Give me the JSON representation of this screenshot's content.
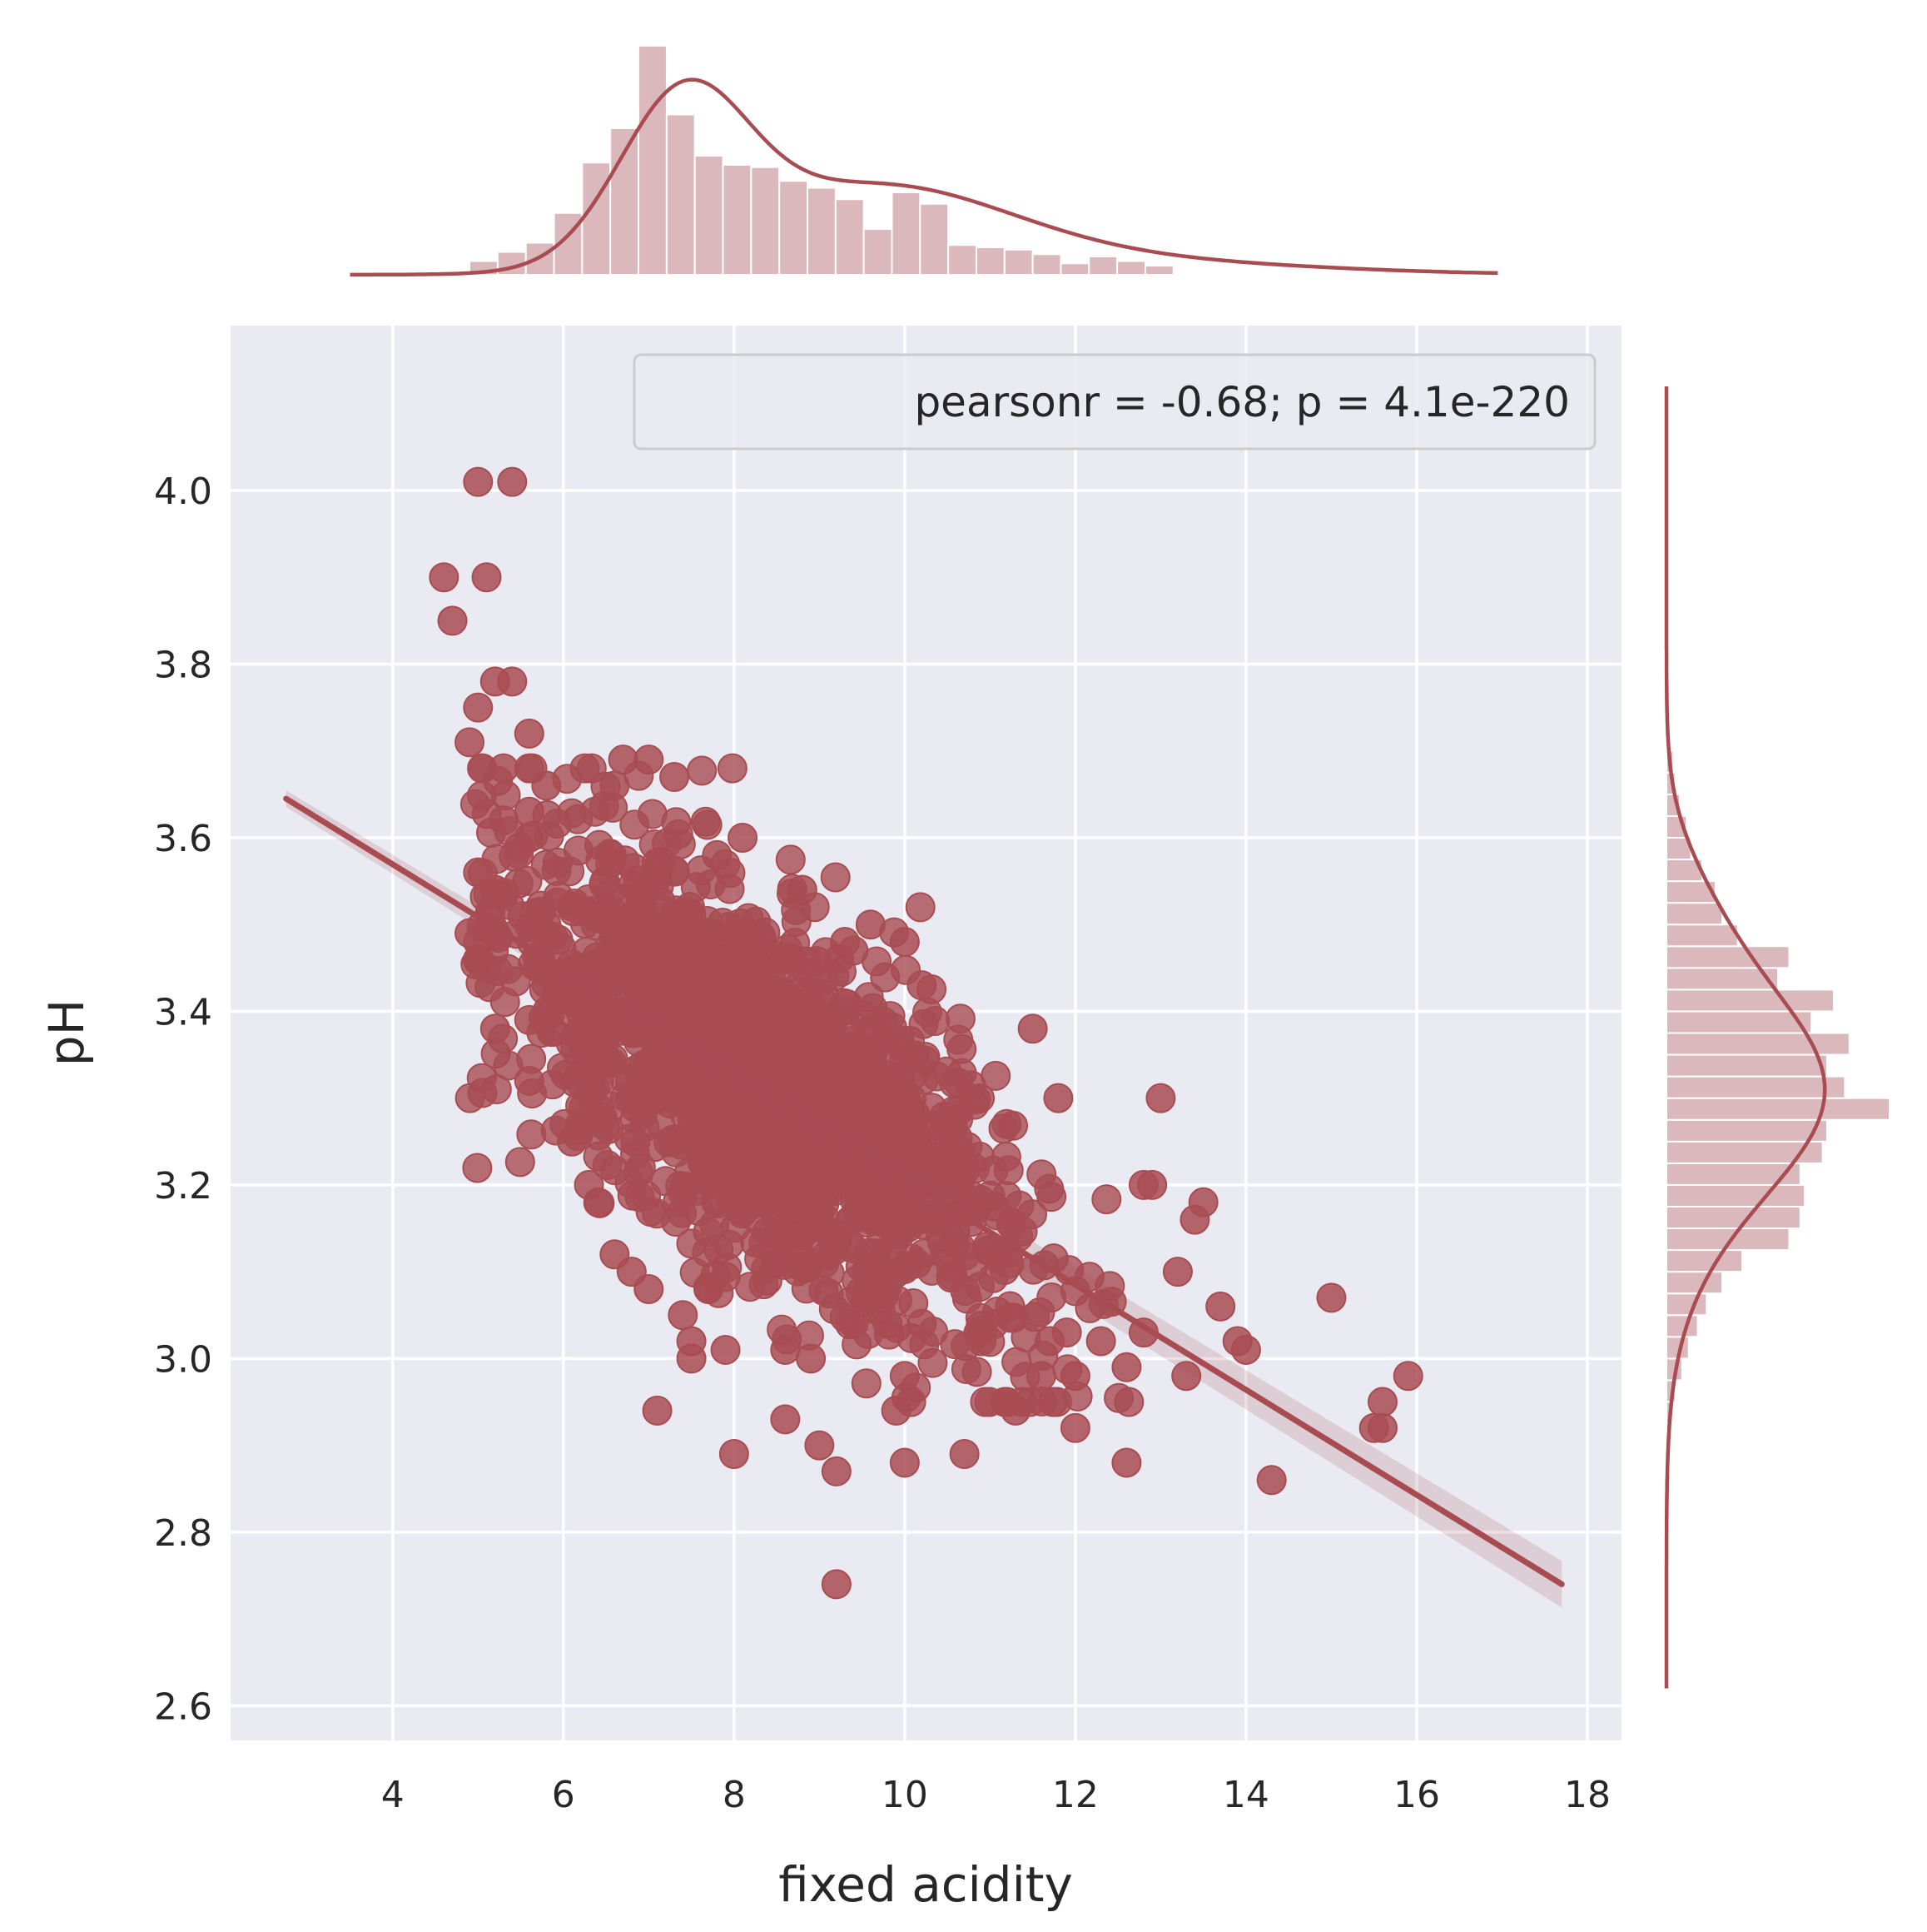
{
  "chart_data": {
    "type": "scatter",
    "style": "seaborn jointplot (kind=reg) with marginal histograms and KDE",
    "xlabel": "fixed acidity",
    "ylabel": "pH",
    "xlim": [
      2.1,
      18.4
    ],
    "ylim": [
      2.56,
      4.19
    ],
    "xticks": [
      4,
      6,
      8,
      10,
      12,
      14,
      16,
      18
    ],
    "yticks": [
      2.6,
      2.8,
      3.0,
      3.2,
      3.4,
      3.6,
      3.8,
      4.0
    ],
    "x_tick_labels": [
      "4",
      "6",
      "8",
      "10",
      "12",
      "14",
      "16",
      "18"
    ],
    "y_tick_labels": [
      "2.6",
      "2.8",
      "3.0",
      "3.2",
      "3.4",
      "3.6",
      "3.8",
      "4.0"
    ],
    "grid": true,
    "legend": {
      "text": "pearsonr = -0.68; p = 4.1e-220",
      "placement": "top-right"
    },
    "colors": {
      "points": "#a84c52",
      "hist": "#dbb8bc",
      "background": "#eaeaf2",
      "grid": "#ffffff",
      "text": "#262626"
    },
    "regression": {
      "x": [
        2.75,
        17.7
      ],
      "y": [
        3.645,
        2.74
      ]
    },
    "outliers": [
      [
        5.0,
        4.01
      ],
      [
        5.4,
        4.01
      ],
      [
        4.6,
        3.9
      ],
      [
        5.1,
        3.9
      ],
      [
        4.7,
        3.85
      ],
      [
        5.2,
        3.78
      ],
      [
        5.4,
        3.78
      ],
      [
        5.0,
        3.75
      ],
      [
        4.9,
        3.71
      ],
      [
        5.6,
        3.72
      ],
      [
        9.2,
        2.74
      ],
      [
        8.0,
        2.89
      ],
      [
        8.6,
        2.93
      ],
      [
        10.7,
        2.89
      ],
      [
        9.0,
        2.9
      ],
      [
        9.2,
        2.87
      ],
      [
        10.0,
        2.88
      ],
      [
        12.6,
        2.88
      ],
      [
        14.3,
        2.86
      ],
      [
        12.0,
        2.92
      ],
      [
        11.3,
        2.94
      ],
      [
        9.9,
        2.94
      ],
      [
        7.1,
        2.94
      ],
      [
        15.0,
        3.07
      ],
      [
        15.9,
        2.98
      ],
      [
        15.6,
        2.95
      ],
      [
        15.5,
        2.92
      ],
      [
        15.6,
        2.92
      ],
      [
        13.9,
        3.02
      ],
      [
        14.0,
        3.01
      ],
      [
        13.0,
        3.3
      ],
      [
        13.5,
        3.18
      ],
      [
        13.4,
        3.16
      ],
      [
        12.9,
        3.2
      ],
      [
        12.8,
        3.2
      ],
      [
        13.2,
        3.1
      ],
      [
        13.7,
        3.06
      ],
      [
        13.3,
        2.98
      ],
      [
        11.5,
        3.38
      ],
      [
        11.8,
        3.3
      ],
      [
        10.0,
        3.48
      ],
      [
        10.2,
        3.43
      ],
      [
        9.6,
        3.5
      ],
      [
        9.3,
        3.48
      ],
      [
        9.4,
        3.47
      ],
      [
        8.8,
        3.54
      ],
      [
        8.1,
        3.6
      ],
      [
        7.8,
        3.58
      ],
      [
        6.7,
        3.69
      ],
      [
        7.0,
        3.69
      ],
      [
        7.3,
        3.67
      ],
      [
        6.6,
        3.66
      ],
      [
        5.8,
        3.66
      ],
      [
        5.6,
        3.68
      ],
      [
        5.3,
        3.68
      ],
      [
        5.6,
        3.63
      ],
      [
        5.3,
        3.62
      ],
      [
        6.1,
        3.25
      ],
      [
        6.3,
        3.2
      ],
      [
        6.6,
        3.12
      ],
      [
        6.8,
        3.1
      ],
      [
        7.0,
        3.08
      ],
      [
        7.7,
        3.08
      ],
      [
        7.4,
        3.05
      ],
      [
        7.5,
        3.02
      ],
      [
        7.5,
        3.0
      ],
      [
        7.9,
        3.01
      ],
      [
        8.6,
        3.01
      ],
      [
        8.9,
        3.0
      ],
      [
        10.0,
        2.98
      ],
      [
        10.9,
        3.02
      ],
      [
        11.6,
        2.98
      ],
      [
        11.7,
        3.02
      ],
      [
        12.0,
        2.98
      ],
      [
        11.9,
        3.03
      ],
      [
        12.6,
        2.99
      ],
      [
        12.8,
        3.03
      ],
      [
        12.3,
        3.02
      ],
      [
        4.9,
        3.49
      ],
      [
        5.0,
        3.46
      ],
      [
        5.2,
        3.38
      ],
      [
        5.0,
        3.56
      ],
      [
        5.2,
        3.54
      ],
      [
        5.6,
        3.32
      ],
      [
        5.6,
        3.39
      ],
      [
        5.8,
        3.5
      ],
      [
        6.2,
        3.45
      ],
      [
        5.7,
        3.45
      ],
      [
        10.2,
        3.04
      ],
      [
        9.8,
        3.04
      ]
    ],
    "cluster": {
      "x_mean": 8.3,
      "x_sd": 1.55,
      "n_points": 1500,
      "slope": -0.0605,
      "intercept": 3.811,
      "residual_sd": 0.1
    },
    "x_marginal": {
      "bin_edges": [
        4.9,
        5.23,
        5.56,
        5.89,
        6.22,
        6.55,
        6.88,
        7.21,
        7.54,
        7.87,
        8.2,
        8.53,
        8.86,
        9.19,
        9.52,
        9.85,
        10.18,
        10.51,
        10.84,
        11.17,
        11.5,
        11.83,
        12.16,
        12.49,
        12.82,
        13.15
      ],
      "values": [
        0.06,
        0.1,
        0.14,
        0.27,
        0.49,
        0.64,
        1.0,
        0.7,
        0.52,
        0.48,
        0.47,
        0.41,
        0.38,
        0.33,
        0.2,
        0.36,
        0.31,
        0.13,
        0.12,
        0.11,
        0.09,
        0.05,
        0.08,
        0.06,
        0.04
      ],
      "kde_peak_x": 7.4
    },
    "y_marginal": {
      "bin_edges": [
        2.9,
        2.925,
        2.95,
        2.975,
        3.0,
        3.025,
        3.05,
        3.075,
        3.1,
        3.125,
        3.15,
        3.175,
        3.2,
        3.225,
        3.25,
        3.275,
        3.3,
        3.325,
        3.35,
        3.375,
        3.4,
        3.425,
        3.45,
        3.475,
        3.5,
        3.525,
        3.55,
        3.575,
        3.6,
        3.625,
        3.65,
        3.675,
        3.7
      ],
      "values": [
        0.01,
        0.02,
        0.04,
        0.07,
        0.1,
        0.14,
        0.18,
        0.25,
        0.34,
        0.55,
        0.6,
        0.62,
        0.6,
        0.7,
        0.72,
        1.0,
        0.8,
        0.72,
        0.82,
        0.65,
        0.75,
        0.5,
        0.55,
        0.32,
        0.25,
        0.22,
        0.16,
        0.11,
        0.09,
        0.06,
        0.04,
        0.03,
        0.02
      ],
      "kde_peak_y": 3.32
    }
  }
}
